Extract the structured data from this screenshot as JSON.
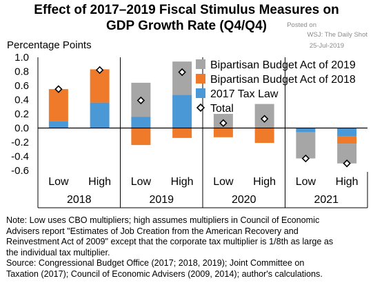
{
  "header": {
    "title_line1": "Effect of 2017–2019 Fiscal Stimulus Measures on",
    "title_line2": "GDP Growth Rate (Q4/Q4)",
    "posted_line1": "Posted on",
    "posted_line2": "WSJ: The Daily Shot",
    "posted_line3": "25-Jul-2019"
  },
  "chart_data": {
    "type": "bar",
    "stacked": true,
    "ylabel": "Percentage Points",
    "ylim": [
      -0.6,
      1.0
    ],
    "yticks": [
      "1.0",
      "0.8",
      "0.6",
      "0.4",
      "0.2",
      "0.0",
      "-0.2",
      "-0.4",
      "-0.6"
    ],
    "ytick_values": [
      1.0,
      0.8,
      0.6,
      0.4,
      0.2,
      0.0,
      -0.2,
      -0.4,
      -0.6
    ],
    "groups": [
      "2018",
      "2019",
      "2020",
      "2021"
    ],
    "categories": [
      "Low",
      "High",
      "Low",
      "High",
      "Low",
      "High",
      "Low",
      "High"
    ],
    "legend_position": "top-right",
    "series": [
      {
        "name": "2017 Tax Law",
        "color": "#4a98d6",
        "values": [
          0.1,
          0.36,
          0.16,
          0.47,
          0.0,
          0.0,
          -0.06,
          -0.12
        ]
      },
      {
        "name": "Bipartisan Budget Act of 2018",
        "color": "#ee7a2a",
        "values": [
          0.45,
          0.47,
          -0.24,
          -0.14,
          -0.13,
          -0.21,
          0.0,
          -0.1
        ]
      },
      {
        "name": "Bipartisan Budget Act of 2019",
        "color": "#a6a6a6",
        "values": [
          0.0,
          0.0,
          0.48,
          0.47,
          0.2,
          0.34,
          -0.37,
          -0.28
        ]
      }
    ],
    "totals": {
      "name": "Total",
      "values": [
        0.55,
        0.82,
        0.39,
        0.79,
        0.07,
        0.13,
        -0.43,
        -0.5
      ]
    }
  },
  "note": {
    "line1": "Note: Low uses CBO multipliers; high assumes multipliers in Council of Economic",
    "line2": "Advisers report \"Estimates of Job Creation from the American Recovery and",
    "line3": "Reinvestment Act of 2009\" except that the corporate tax multiplier is 1/8th as large as",
    "line4": "the individual tax multiplier.",
    "line5": "Source: Congressional Budget Office (2017; 2018, 2019); Joint Committee on",
    "line6": "Taxation (2017); Council of Economic Advisers (2009, 2014); author's calculations."
  }
}
